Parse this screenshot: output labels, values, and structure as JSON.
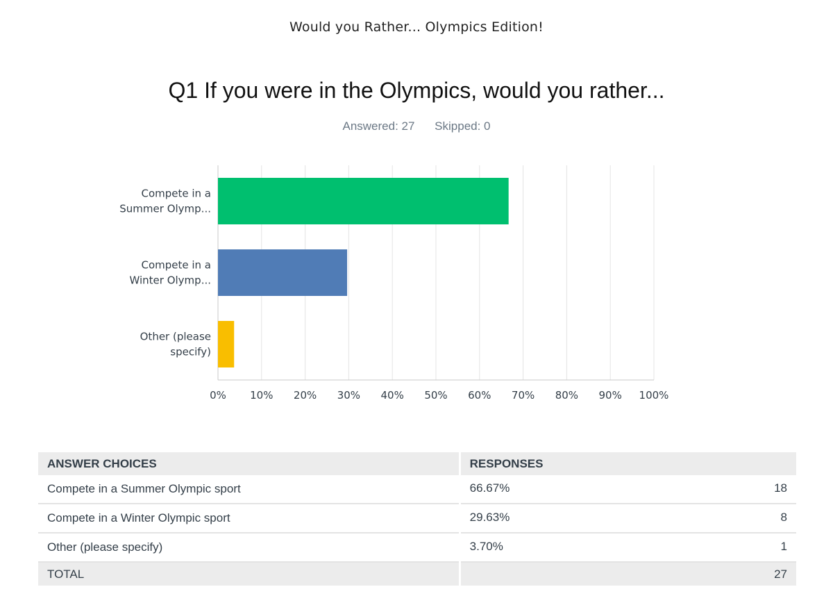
{
  "survey_title": "Would you Rather... Olympics Edition!",
  "question": {
    "title": "Q1 If you were in the Olympics, would you rather...",
    "answered_label": "Answered: 27",
    "skipped_label": "Skipped: 0"
  },
  "chart_data": {
    "type": "bar",
    "orientation": "horizontal",
    "categories": [
      [
        "Compete in a",
        "Summer Olymp..."
      ],
      [
        "Compete in a",
        "Winter Olymp..."
      ],
      [
        "Other (please",
        "specify)"
      ]
    ],
    "values": [
      66.67,
      29.63,
      3.7
    ],
    "colors": [
      "#00bf6f",
      "#507cb6",
      "#f9be00"
    ],
    "xlim": [
      0,
      100
    ],
    "xticks": [
      "0%",
      "10%",
      "20%",
      "30%",
      "40%",
      "50%",
      "60%",
      "70%",
      "80%",
      "90%",
      "100%"
    ],
    "grid": true
  },
  "table": {
    "headers": [
      "ANSWER CHOICES",
      "RESPONSES"
    ],
    "rows": [
      {
        "choice": "Compete in a Summer Olympic sport",
        "percent": "66.67%",
        "count": "18"
      },
      {
        "choice": "Compete in a Winter Olympic sport",
        "percent": "29.63%",
        "count": "8"
      },
      {
        "choice": "Other (please specify)",
        "percent": "3.70%",
        "count": "1"
      }
    ],
    "total_label": "TOTAL",
    "total_count": "27"
  }
}
